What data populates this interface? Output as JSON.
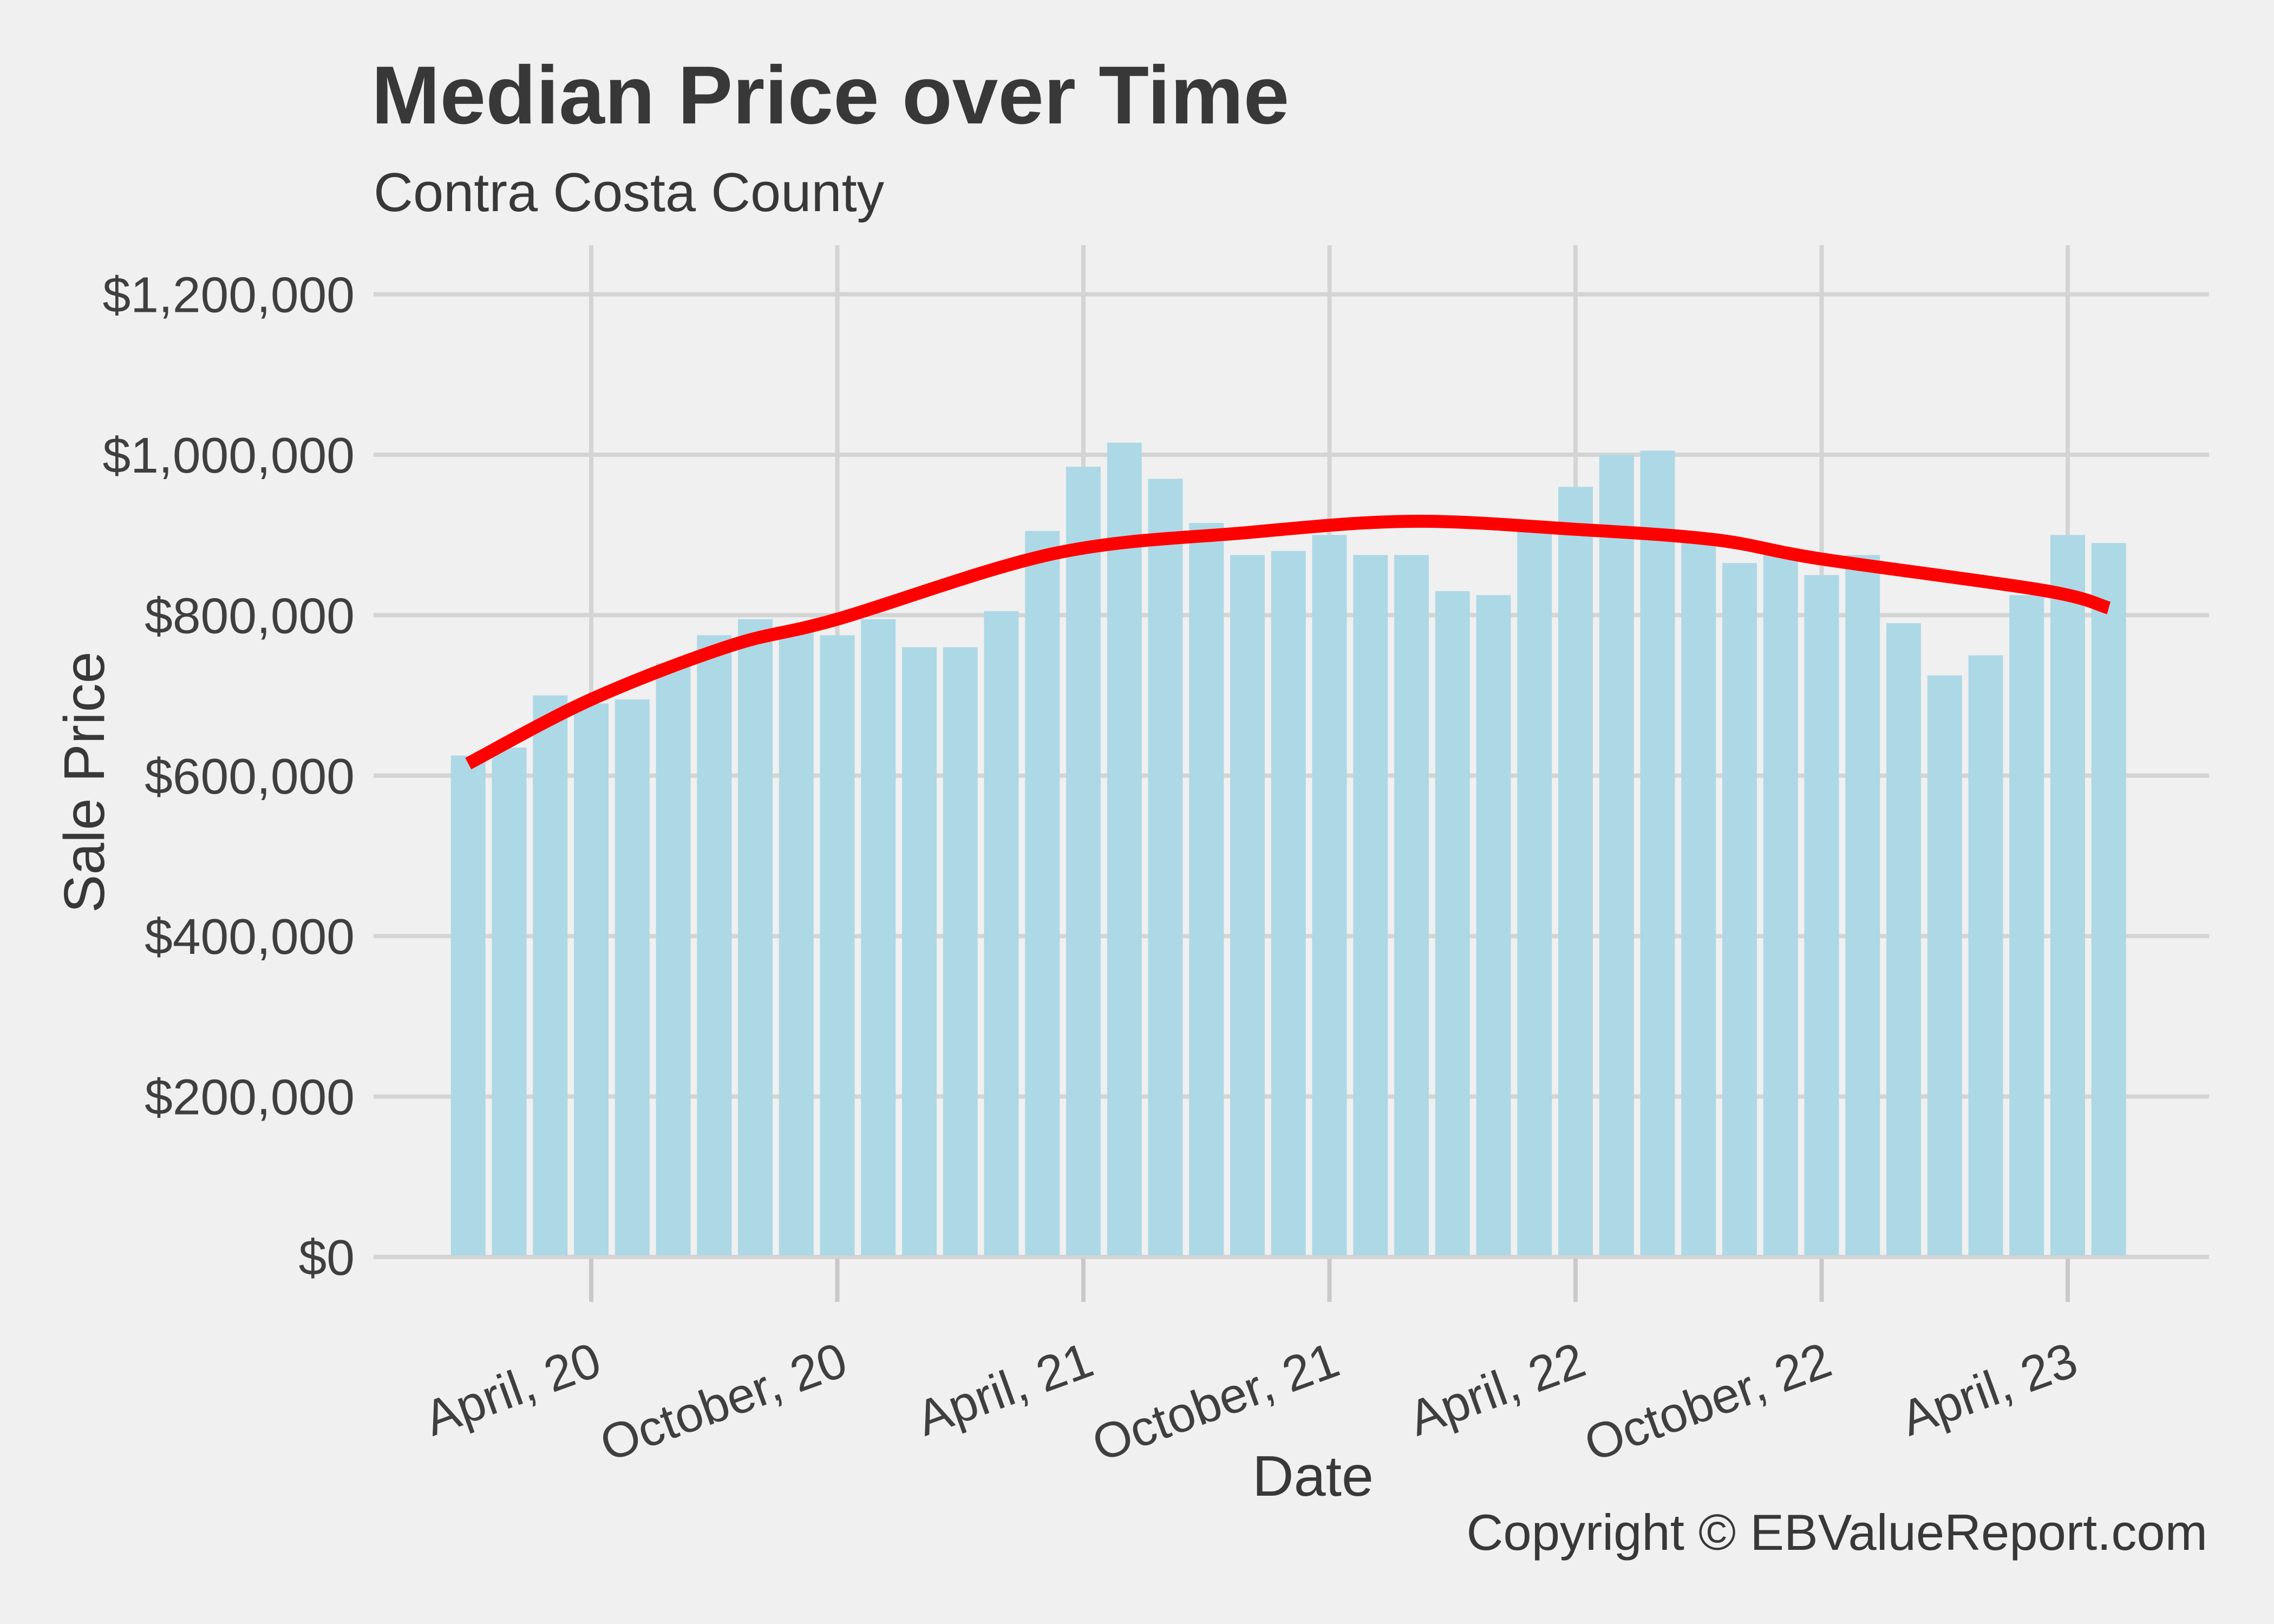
{
  "page": {
    "background": "#F0F0F0"
  },
  "header": {
    "title": "Median Price over Time",
    "subtitle": "Contra Costa County"
  },
  "footer": {
    "copyright": "Copyright © EBValueReport.com"
  },
  "chart_data": {
    "type": "bar",
    "title": "Median Price over Time",
    "subtitle": "Contra Costa County",
    "xlabel": "Date",
    "ylabel": "Sale Price",
    "legend": "none",
    "grid": "major gridlines only, horizontal and vertical, no minor",
    "ylim": [
      0,
      1260000
    ],
    "bar_color": "#ADD8E6",
    "trend_color": "#FF0000",
    "gridline_color": "#D4D4D4",
    "tick_color": "#C9C9C9",
    "text_color": "#3F3F3F",
    "title_color": "#383838",
    "background_color": "#F0F0F0",
    "categories": [
      "Jan 2020",
      "Feb 2020",
      "Mar 2020",
      "Apr 2020",
      "May 2020",
      "Jun 2020",
      "Jul 2020",
      "Aug 2020",
      "Sep 2020",
      "Oct 2020",
      "Nov 2020",
      "Dec 2020",
      "Jan 2021",
      "Feb 2021",
      "Mar 2021",
      "Apr 2021",
      "May 2021",
      "Jun 2021",
      "Jul 2021",
      "Aug 2021",
      "Sep 2021",
      "Oct 2021",
      "Nov 2021",
      "Dec 2021",
      "Jan 2022",
      "Feb 2022",
      "Mar 2022",
      "Apr 2022",
      "May 2022",
      "Jun 2022",
      "Jul 2022",
      "Aug 2022",
      "Sep 2022",
      "Oct 2022",
      "Nov 2022",
      "Dec 2022",
      "Jan 2023",
      "Feb 2023",
      "Mar 2023",
      "Apr 2023",
      "May 2023"
    ],
    "values": [
      625000,
      635000,
      700000,
      690000,
      695000,
      740000,
      775000,
      795000,
      780000,
      775000,
      795000,
      760000,
      760000,
      805000,
      905000,
      985000,
      1015000,
      970000,
      915000,
      875000,
      880000,
      900000,
      875000,
      875000,
      830000,
      825000,
      905000,
      960000,
      1000000,
      1005000,
      900000,
      865000,
      875000,
      850000,
      875000,
      790000,
      725000,
      750000,
      825000,
      900000,
      890000
    ],
    "trend_line": {
      "name": "smoothed-trend",
      "color": "#FF0000",
      "points": [
        [
          0,
          615000
        ],
        [
          3,
          695000
        ],
        [
          6.4,
          762000
        ],
        [
          9,
          795000
        ],
        [
          14.3,
          877000
        ],
        [
          19,
          903000
        ],
        [
          23,
          917000
        ],
        [
          27,
          907000
        ],
        [
          30.4,
          894000
        ],
        [
          33,
          870000
        ],
        [
          38.4,
          831000
        ],
        [
          40,
          809000
        ]
      ]
    },
    "x_ticks": [
      {
        "label": "April, 20",
        "month_index": 3
      },
      {
        "label": "October, 20",
        "month_index": 9
      },
      {
        "label": "April, 21",
        "month_index": 15
      },
      {
        "label": "October, 21",
        "month_index": 21
      },
      {
        "label": "April, 22",
        "month_index": 27
      },
      {
        "label": "October, 22",
        "month_index": 33
      },
      {
        "label": "April, 23",
        "month_index": 39
      }
    ],
    "y_ticks": [
      {
        "label": "$0",
        "value": 0
      },
      {
        "label": "$200,000",
        "value": 200000
      },
      {
        "label": "$400,000",
        "value": 400000
      },
      {
        "label": "$600,000",
        "value": 600000
      },
      {
        "label": "$800,000",
        "value": 800000
      },
      {
        "label": "$1,000,000",
        "value": 1000000
      },
      {
        "label": "$1,200,000",
        "value": 1200000
      }
    ]
  }
}
